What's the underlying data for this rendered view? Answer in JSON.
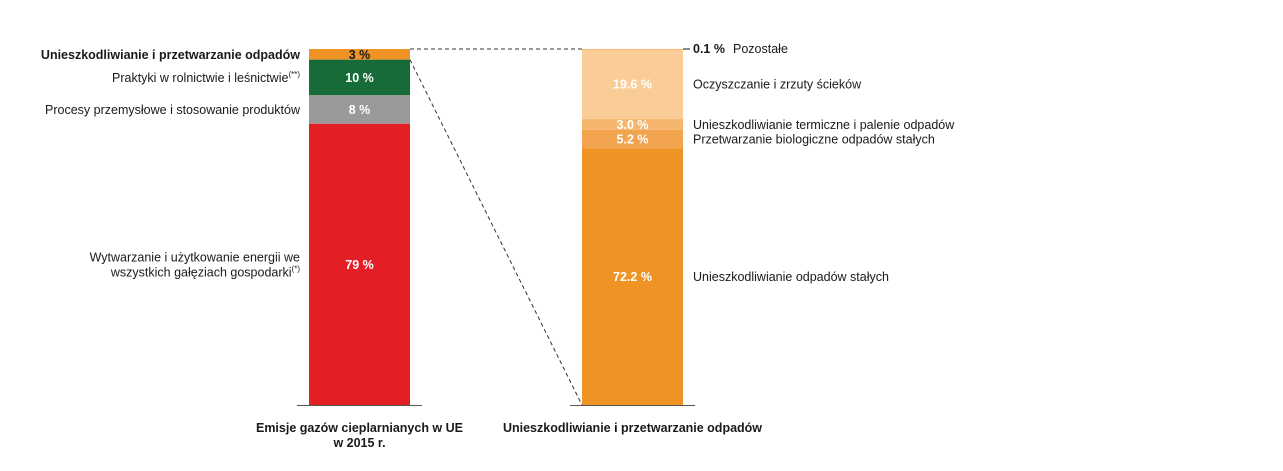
{
  "chart_data": [
    {
      "type": "bar",
      "stacked": true,
      "xlabel": "Emisje gazów cieplarnianych w UE w 2015 r.",
      "xlabel_lines": [
        "Emisje gazów cieplarnianych w UE",
        "w 2015 r."
      ],
      "series": [
        {
          "name": "Unieszkodliwianie i przetwarzanie odpadów",
          "name_lines": [
            "Unieszkodliwianie i przetwarzanie odpadów"
          ],
          "sup": "",
          "value": 3,
          "label": "3 %",
          "color": "#EE9324",
          "label_dark": true
        },
        {
          "name": "Praktyki w rolnictwie i leśnictwie",
          "name_lines": [
            "Praktyki w rolnictwie i leśnictwie"
          ],
          "sup": "(**)",
          "value": 10,
          "label": "10 %",
          "color": "#166B39",
          "label_dark": false
        },
        {
          "name": "Procesy przemysłowe i stosowanie produktów",
          "name_lines": [
            "Procesy przemysłowe i stosowanie produktów"
          ],
          "sup": "",
          "value": 8,
          "label": "8 %",
          "color": "#9A9A9A",
          "label_dark": false
        },
        {
          "name": "Wytwarzanie i użytkowanie energii we wszystkich gałęziach gospodarki",
          "name_lines": [
            "Wytwarzanie i użytkowanie energii we",
            "wszystkich gałęziach gospodarki"
          ],
          "sup": "(*)",
          "value": 79,
          "label": "79 %",
          "color": "#E41E25",
          "label_dark": false
        }
      ]
    },
    {
      "type": "bar",
      "stacked": true,
      "xlabel": "Unieszkodliwianie i przetwarzanie odpadów",
      "xlabel_lines": [
        "Unieszkodliwianie i przetwarzanie odpadów"
      ],
      "series": [
        {
          "name": "Pozostałe",
          "value": 0.1,
          "label": "0.1 %",
          "color": "#EE9324",
          "label_outside": true
        },
        {
          "name": "Oczyszczanie i zrzuty ścieków",
          "value": 19.6,
          "label": "19.6 %",
          "color": "#F9CC98"
        },
        {
          "name": "Unieszkodliwianie termiczne i palenie odpadów",
          "value": 3.0,
          "label": "3.0 %",
          "color": "#F5B56E"
        },
        {
          "name": "Przetwarzanie biologiczne odpadów stałych",
          "value": 5.2,
          "label": "5.2 %",
          "color": "#F1A34E"
        },
        {
          "name": "Unieszkodliwianie odpadów stałych",
          "value": 72.2,
          "label": "72.2 %",
          "color": "#EE9324"
        }
      ]
    }
  ]
}
